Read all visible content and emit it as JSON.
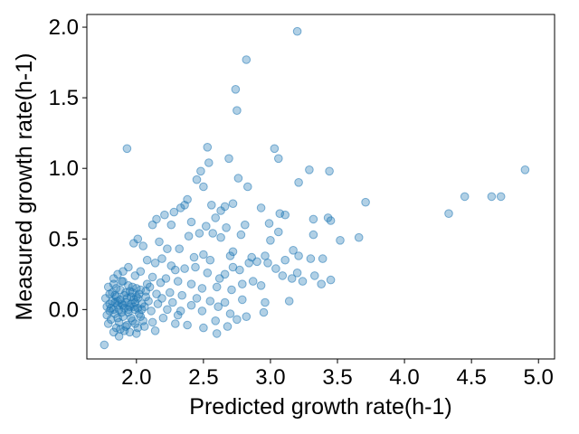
{
  "chart_data": {
    "type": "scatter",
    "title": "",
    "xlabel": "Predicted growth rate(h-1)",
    "ylabel": "Measured growth rate(h-1)",
    "xlim": [
      1.63,
      5.12
    ],
    "ylim": [
      -0.35,
      2.09
    ],
    "xticks": [
      2.0,
      2.5,
      3.0,
      3.5,
      4.0,
      4.5,
      5.0
    ],
    "xtick_labels": [
      "2.0",
      "2.5",
      "3.0",
      "3.5",
      "4.0",
      "4.5",
      "5.0"
    ],
    "yticks": [
      0.0,
      0.5,
      1.0,
      1.5,
      2.0
    ],
    "ytick_labels": [
      "0.0",
      "0.5",
      "1.0",
      "1.5",
      "2.0"
    ],
    "grid": false,
    "marker_color": "#1f77b4",
    "marker_alpha": 0.35,
    "series": [
      {
        "points": [
          [
            3.2,
            1.97
          ],
          [
            2.82,
            1.77
          ],
          [
            2.74,
            1.56
          ],
          [
            2.75,
            1.41
          ],
          [
            1.93,
            1.14
          ],
          [
            2.53,
            1.15
          ],
          [
            3.03,
            1.14
          ],
          [
            3.06,
            1.07
          ],
          [
            2.69,
            1.07
          ],
          [
            2.54,
            1.04
          ],
          [
            2.48,
            0.98
          ],
          [
            3.29,
            0.99
          ],
          [
            3.44,
            0.98
          ],
          [
            4.9,
            0.99
          ],
          [
            2.76,
            0.93
          ],
          [
            3.21,
            0.9
          ],
          [
            2.45,
            0.92
          ],
          [
            2.5,
            0.87
          ],
          [
            2.83,
            0.87
          ],
          [
            2.38,
            0.78
          ],
          [
            2.56,
            0.74
          ],
          [
            2.66,
            0.73
          ],
          [
            2.72,
            0.75
          ],
          [
            3.71,
            0.76
          ],
          [
            4.45,
            0.8
          ],
          [
            4.65,
            0.8
          ],
          [
            4.72,
            0.8
          ],
          [
            2.93,
            0.72
          ],
          [
            3.07,
            0.68
          ],
          [
            3.11,
            0.67
          ],
          [
            2.33,
            0.72
          ],
          [
            2.28,
            0.69
          ],
          [
            2.36,
            0.74
          ],
          [
            2.63,
            0.7
          ],
          [
            2.21,
            0.67
          ],
          [
            2.15,
            0.64
          ],
          [
            2.12,
            0.6
          ],
          [
            2.26,
            0.6
          ],
          [
            2.41,
            0.62
          ],
          [
            2.52,
            0.59
          ],
          [
            2.67,
            0.58
          ],
          [
            3.32,
            0.64
          ],
          [
            3.43,
            0.65
          ],
          [
            3.45,
            0.63
          ],
          [
            4.33,
            0.68
          ],
          [
            2.99,
            0.61
          ],
          [
            2.81,
            0.6
          ],
          [
            2.59,
            0.65
          ],
          [
            2.47,
            0.54
          ],
          [
            2.39,
            0.52
          ],
          [
            2.57,
            0.54
          ],
          [
            2.63,
            0.51
          ],
          [
            2.78,
            0.53
          ],
          [
            3.52,
            0.49
          ],
          [
            3.66,
            0.51
          ],
          [
            3.32,
            0.53
          ],
          [
            3.0,
            0.49
          ],
          [
            3.06,
            0.55
          ],
          [
            2.01,
            0.5
          ],
          [
            1.98,
            0.47
          ],
          [
            2.05,
            0.45
          ],
          [
            2.17,
            0.48
          ],
          [
            2.23,
            0.43
          ],
          [
            2.32,
            0.43
          ],
          [
            2.72,
            0.41
          ],
          [
            2.7,
            0.38
          ],
          [
            2.86,
            0.37
          ],
          [
            2.96,
            0.38
          ],
          [
            3.11,
            0.35
          ],
          [
            3.17,
            0.42
          ],
          [
            3.21,
            0.38
          ],
          [
            3.3,
            0.36
          ],
          [
            3.39,
            0.36
          ],
          [
            2.43,
            0.37
          ],
          [
            2.5,
            0.39
          ],
          [
            2.55,
            0.35
          ],
          [
            2.08,
            0.35
          ],
          [
            2.14,
            0.33
          ],
          [
            2.19,
            0.36
          ],
          [
            2.26,
            0.31
          ],
          [
            2.29,
            0.28
          ],
          [
            2.36,
            0.29
          ],
          [
            2.44,
            0.3
          ],
          [
            2.53,
            0.26
          ],
          [
            2.62,
            0.22
          ],
          [
            2.66,
            0.25
          ],
          [
            2.72,
            0.3
          ],
          [
            2.77,
            0.28
          ],
          [
            2.84,
            0.33
          ],
          [
            2.9,
            0.34
          ],
          [
            2.98,
            0.33
          ],
          [
            3.04,
            0.29
          ],
          [
            3.09,
            0.24
          ],
          [
            3.16,
            0.22
          ],
          [
            3.2,
            0.26
          ],
          [
            3.24,
            0.2
          ],
          [
            3.33,
            0.24
          ],
          [
            3.38,
            0.18
          ],
          [
            3.45,
            0.21
          ],
          [
            2.93,
            0.17
          ],
          [
            2.87,
            0.2
          ],
          [
            2.79,
            0.18
          ],
          [
            2.71,
            0.14
          ],
          [
            2.6,
            0.16
          ],
          [
            2.49,
            0.15
          ],
          [
            2.41,
            0.18
          ],
          [
            2.31,
            0.2
          ],
          [
            2.22,
            0.22
          ],
          [
            2.18,
            0.19
          ],
          [
            2.12,
            0.23
          ],
          [
            2.08,
            0.18
          ],
          [
            2.03,
            0.27
          ],
          [
            1.99,
            0.24
          ],
          [
            1.94,
            0.3
          ],
          [
            1.9,
            0.27
          ],
          [
            1.86,
            0.25
          ],
          [
            1.83,
            0.22
          ],
          [
            2.07,
            0.13
          ],
          [
            2.15,
            0.11
          ],
          [
            2.25,
            0.12
          ],
          [
            2.34,
            0.1
          ],
          [
            2.45,
            0.08
          ],
          [
            2.55,
            0.06
          ],
          [
            2.66,
            0.05
          ],
          [
            2.79,
            0.07
          ],
          [
            2.96,
            0.05
          ],
          [
            3.14,
            0.06
          ],
          [
            2.41,
            0.03
          ],
          [
            2.49,
            -0.01
          ],
          [
            2.61,
            0.02
          ],
          [
            2.7,
            -0.03
          ],
          [
            2.82,
            -0.05
          ],
          [
            2.95,
            -0.02
          ],
          [
            2.31,
            -0.04
          ],
          [
            2.2,
            -0.06
          ],
          [
            2.12,
            -0.09
          ],
          [
            2.06,
            -0.12
          ],
          [
            2.29,
            -0.1
          ],
          [
            2.38,
            -0.11
          ],
          [
            2.5,
            -0.13
          ],
          [
            2.59,
            -0.08
          ],
          [
            2.68,
            -0.12
          ],
          [
            2.75,
            -0.07
          ],
          [
            2.14,
            -0.15
          ],
          [
            2.0,
            -0.17
          ],
          [
            1.87,
            -0.19
          ],
          [
            1.76,
            -0.25
          ],
          [
            2.6,
            -0.17
          ],
          [
            1.79,
            0.16
          ],
          [
            1.82,
            0.12
          ],
          [
            1.85,
            0.09
          ],
          [
            1.88,
            0.14
          ],
          [
            1.91,
            0.1
          ],
          [
            1.94,
            0.17
          ],
          [
            1.97,
            0.12
          ],
          [
            2.0,
            0.15
          ],
          [
            1.8,
            0.04
          ],
          [
            1.83,
            0.0
          ],
          [
            1.86,
            0.03
          ],
          [
            1.89,
            -0.02
          ],
          [
            1.92,
            0.05
          ],
          [
            1.95,
            0.02
          ],
          [
            1.98,
            0.07
          ],
          [
            2.01,
            0.01
          ],
          [
            1.78,
            -0.04
          ],
          [
            1.81,
            -0.07
          ],
          [
            1.84,
            -0.03
          ],
          [
            1.87,
            -0.09
          ],
          [
            1.9,
            -0.05
          ],
          [
            1.93,
            -0.11
          ],
          [
            1.96,
            -0.06
          ],
          [
            1.99,
            -0.1
          ],
          [
            2.02,
            -0.03
          ],
          [
            2.04,
            0.04
          ],
          [
            1.77,
            0.08
          ],
          [
            1.79,
            -0.1
          ],
          [
            1.82,
            0.06
          ],
          [
            1.85,
            -0.13
          ],
          [
            1.88,
            0.07
          ],
          [
            1.91,
            -0.15
          ],
          [
            1.94,
            0.0
          ],
          [
            1.97,
            -0.08
          ],
          [
            2.0,
            0.09
          ],
          [
            2.03,
            -0.05
          ],
          [
            1.8,
            0.11
          ],
          [
            1.83,
            0.18
          ],
          [
            1.86,
            -0.06
          ],
          [
            1.89,
            0.2
          ],
          [
            1.92,
            -0.12
          ],
          [
            1.95,
            0.13
          ],
          [
            1.98,
            0.02
          ],
          [
            2.01,
            0.08
          ],
          [
            2.05,
            -0.08
          ],
          [
            1.81,
            0.01
          ],
          [
            1.84,
            0.05
          ],
          [
            1.87,
            0.0
          ],
          [
            1.9,
            0.03
          ],
          [
            1.93,
            0.08
          ],
          [
            1.96,
            0.04
          ],
          [
            1.99,
            0.0
          ],
          [
            2.02,
            0.11
          ],
          [
            2.06,
            0.02
          ],
          [
            2.09,
            0.06
          ],
          [
            2.11,
            -0.01
          ],
          [
            2.16,
            0.04
          ],
          [
            2.19,
            0.08
          ],
          [
            2.23,
            0.0
          ],
          [
            2.27,
            0.05
          ],
          [
            2.33,
            -0.01
          ],
          [
            1.78,
            0.02
          ],
          [
            1.85,
            0.15
          ],
          [
            1.9,
            0.2
          ],
          [
            1.95,
            -0.16
          ],
          [
            1.88,
            -0.14
          ],
          [
            1.84,
            0.1
          ],
          [
            1.92,
            0.12
          ],
          [
            1.97,
            0.16
          ],
          [
            2.03,
            0.14
          ],
          [
            2.07,
            0.09
          ],
          [
            2.1,
            0.16
          ],
          [
            1.8,
            -0.01
          ],
          [
            1.86,
            0.06
          ],
          [
            1.91,
            0.01
          ],
          [
            1.96,
            0.09
          ],
          [
            2.01,
            -0.13
          ],
          [
            1.83,
            -0.16
          ],
          [
            1.89,
            0.04
          ],
          [
            1.94,
            -0.02
          ],
          [
            1.99,
            0.05
          ],
          [
            2.04,
            0.0
          ]
        ]
      }
    ]
  }
}
